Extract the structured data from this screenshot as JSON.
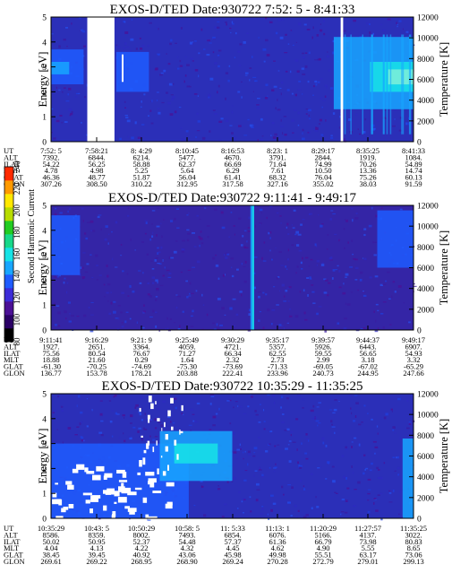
{
  "colorbar": {
    "label": "Second Harmonic Current",
    "ticks": [
      "80",
      "100",
      "120",
      "140",
      "160",
      "180",
      "200",
      "220",
      "240"
    ],
    "colors": [
      "#000000",
      "#2a0066",
      "#4b1096",
      "#3c2cd8",
      "#1f5cff",
      "#18a6ff",
      "#17e3e6",
      "#18d88a",
      "#22cc22",
      "#b8dc00",
      "#ffe800",
      "#ff9a00",
      "#ff2a00"
    ]
  },
  "chart_data": [
    {
      "type": "heatmap",
      "title": "EXOS-D/TED   Date:930722   7:52: 5 - 8:41:33",
      "ylabel": "Energy [eV]",
      "y2label": "Temperature [K]",
      "ylim": [
        0,
        5
      ],
      "y2lim": [
        0,
        12000
      ],
      "yticks": [
        "0",
        "1",
        "2",
        "3",
        "4",
        "5"
      ],
      "y2ticks": [
        "0",
        "2000",
        "4000",
        "6000",
        "8000",
        "10000",
        "12000"
      ],
      "background": "#2b2fb8",
      "data_gaps": [
        [
          0.1,
          0.175
        ],
        [
          0.799,
          0.806
        ]
      ],
      "features": [
        {
          "x0": 0.78,
          "x1": 1.0,
          "y0": 1.3,
          "y1": 4.2,
          "color": "#18a6ff"
        },
        {
          "x0": 0.88,
          "x1": 1.0,
          "y0": 2.0,
          "y1": 3.2,
          "color": "#17e3e6"
        },
        {
          "x0": 0.93,
          "x1": 1.0,
          "y0": 2.3,
          "y1": 2.9,
          "color": "#7ff0d8"
        },
        {
          "x0": 0.18,
          "x1": 0.27,
          "y0": 2.0,
          "y1": 3.6,
          "color": "#1f5cff"
        },
        {
          "x0": 0.0,
          "x1": 0.09,
          "y0": 2.3,
          "y1": 3.7,
          "color": "#1f5cff"
        },
        {
          "x0": 0.0,
          "x1": 0.05,
          "y0": 2.7,
          "y1": 3.2,
          "color": "#18a6ff"
        }
      ],
      "table": {
        "labels": [
          "UT",
          "ALT",
          "ILAT",
          "MLT",
          "GLAT",
          "GLON"
        ],
        "columns": [
          [
            "7:52: 5",
            "7392.",
            "54.22",
            "4.78",
            "46.36",
            "307.26"
          ],
          [
            "7:58:21",
            "6844.",
            "56.25",
            "4.98",
            "48.77",
            "308.50"
          ],
          [
            "8: 4:29",
            "6214.",
            "58.88",
            "5.25",
            "51.87",
            "310.22"
          ],
          [
            "8:10:45",
            "5477.",
            "62.37",
            "5.64",
            "56.04",
            "312.95"
          ],
          [
            "8:16:53",
            "4670.",
            "66.69",
            "6.29",
            "61.41",
            "317.58"
          ],
          [
            "8:23: 1",
            "3791.",
            "71.64",
            "7.61",
            "68.32",
            "327.16"
          ],
          [
            "8:29:17",
            "2844.",
            "74.99",
            "10.50",
            "76.04",
            "355.02"
          ],
          [
            "8:35:25",
            "1919.",
            "70.26",
            "13.36",
            "75.26",
            "38.03"
          ],
          [
            "8:41:33",
            "1084.",
            "54.89",
            "14.74",
            "60.13",
            "91.59"
          ]
        ]
      }
    },
    {
      "type": "heatmap",
      "title": "EXOS-D/TED   Date:930722   9:11:41 - 9:49:17",
      "ylabel": "Energy [eV]",
      "y2label": "Temperature [K]",
      "ylim": [
        0,
        5
      ],
      "y2lim": [
        0,
        12000
      ],
      "yticks": [
        "0",
        "1",
        "2",
        "3",
        "4",
        "5"
      ],
      "y2ticks": [
        "0",
        "2000",
        "4000",
        "6000",
        "8000",
        "10000",
        "12000"
      ],
      "background": "#3425a6",
      "data_gaps": [],
      "features": [
        {
          "x0": 0.0,
          "x1": 0.08,
          "y0": 2.2,
          "y1": 4.6,
          "color": "#1f5cff"
        },
        {
          "x0": 0.9,
          "x1": 1.0,
          "y0": 2.5,
          "y1": 4.8,
          "color": "#1f5cff"
        },
        {
          "x0": 0.55,
          "x1": 0.56,
          "y0": 0.0,
          "y1": 5.0,
          "color": "#18a6ff"
        }
      ],
      "table": {
        "labels": [
          "UT",
          "ALT",
          "ILAT",
          "MLT",
          "GLAT",
          "GLON"
        ],
        "columns": [
          [
            "9:11:41",
            "1927.",
            "75.56",
            "18.88",
            "-61.30",
            "136.77"
          ],
          [
            "9:16:29",
            "2651.",
            "80.54",
            "21.60",
            "-70.25",
            "153.78"
          ],
          [
            "9:21: 9",
            "3364.",
            "76.67",
            "0.29",
            "-74.69",
            "178.21"
          ],
          [
            "9:25:49",
            "4059.",
            "71.27",
            "1.64",
            "-75.30",
            "203.88"
          ],
          [
            "9:30:29",
            "4721.",
            "66.34",
            "2.32",
            "-73.69",
            "222.41"
          ],
          [
            "9:35:17",
            "5357.",
            "62.55",
            "2.73",
            "-71.33",
            "233.96"
          ],
          [
            "9:39:57",
            "5926.",
            "59.55",
            "2.99",
            "-69.05",
            "240.73"
          ],
          [
            "9:44:37",
            "6443.",
            "56.65",
            "3.18",
            "-67.02",
            "244.95"
          ],
          [
            "9:49:17",
            "6907.",
            "54.93",
            "3.32",
            "-65.29",
            "247.66"
          ]
        ]
      }
    },
    {
      "type": "heatmap",
      "title": "EXOS-D/TED   Date:930722   10:35:29 - 11:35:25",
      "ylabel": "Energy [eV]",
      "y2label": "Temperature [K]",
      "ylim": [
        0,
        5
      ],
      "y2lim": [
        0,
        12000
      ],
      "yticks": [
        "0",
        "1",
        "2",
        "3",
        "4",
        "5"
      ],
      "y2ticks": [
        "0",
        "2000",
        "4000",
        "6000",
        "8000",
        "10000",
        "12000"
      ],
      "background": "#2b2fb8",
      "data_gaps": [],
      "features": [
        {
          "x0": 0.0,
          "x1": 0.38,
          "y0": 0.0,
          "y1": 3.0,
          "color": "#1f5cff"
        },
        {
          "x0": 0.3,
          "x1": 0.5,
          "y0": 1.5,
          "y1": 3.5,
          "color": "#18a6ff"
        },
        {
          "x0": 0.34,
          "x1": 0.46,
          "y0": 2.2,
          "y1": 3.0,
          "color": "#17e3e6"
        },
        {
          "x0": 0.97,
          "x1": 1.0,
          "y0": 0.0,
          "y1": 3.2,
          "color": "#18a6ff"
        }
      ],
      "table": {
        "labels": [
          "UT",
          "ALT",
          "ILAT",
          "MLT",
          "GLAT",
          "GLON"
        ],
        "columns": [
          [
            "10:35:29",
            "8586.",
            "50.02",
            "4.04",
            "38.45",
            "269.61"
          ],
          [
            "10:43: 5",
            "8359.",
            "50.95",
            "4.13",
            "39.45",
            "269.22"
          ],
          [
            "10:50:29",
            "8002.",
            "52.37",
            "4.22",
            "40.92",
            "268.95"
          ],
          [
            "10:58: 5",
            "7493.",
            "54.48",
            "4.32",
            "43.06",
            "268.90"
          ],
          [
            "11: 5:33",
            "6854.",
            "57.37",
            "4.45",
            "45.98",
            "269.24"
          ],
          [
            "11:13: 1",
            "6076.",
            "61.36",
            "4.62",
            "49.98",
            "270.28"
          ],
          [
            "11:20:29",
            "5166.",
            "66.79",
            "4.90",
            "55.51",
            "272.79"
          ],
          [
            "11:27:57",
            "4137.",
            "73.98",
            "5.55",
            "63.17",
            "279.01"
          ],
          [
            "11:35:25",
            "3022.",
            "80.83",
            "8.65",
            "73.06",
            "299.13"
          ]
        ]
      }
    }
  ]
}
